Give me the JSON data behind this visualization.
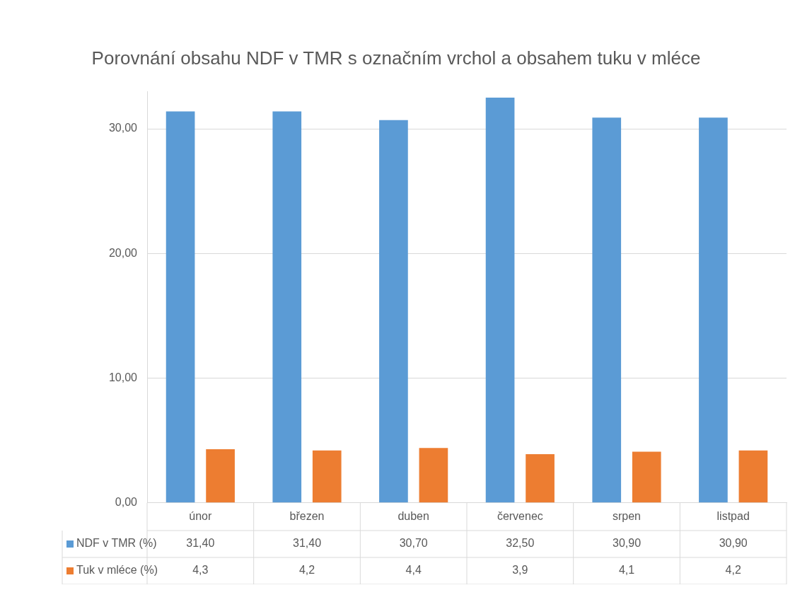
{
  "chart_data": {
    "type": "bar",
    "title": "Porovnání obsahu NDF v TMR s označním vrchol a obsahem tuku v mléce",
    "categories": [
      "únor",
      "březen",
      "duben",
      "červenec",
      "srpen",
      "listpad"
    ],
    "series": [
      {
        "name": "NDF v TMR (%)",
        "color": "#5b9bd5",
        "values": [
          31.4,
          31.4,
          30.7,
          32.5,
          30.9,
          30.9
        ],
        "value_labels": [
          "31,40",
          "31,40",
          "30,70",
          "32,50",
          "30,90",
          "30,90"
        ]
      },
      {
        "name": "Tuk v mléce (%)",
        "color": "#ed7d31",
        "values": [
          4.3,
          4.2,
          4.4,
          3.9,
          4.1,
          4.2
        ],
        "value_labels": [
          "4,3",
          "4,2",
          "4,4",
          "3,9",
          "4,1",
          "4,2"
        ]
      }
    ],
    "ylim": [
      0,
      33
    ],
    "yticks": [
      {
        "value": 0,
        "label": "0,00"
      },
      {
        "value": 10,
        "label": "10,00"
      },
      {
        "value": 20,
        "label": "20,00"
      },
      {
        "value": 30,
        "label": "30,00"
      }
    ],
    "grid": "y",
    "legend": "bottom"
  }
}
